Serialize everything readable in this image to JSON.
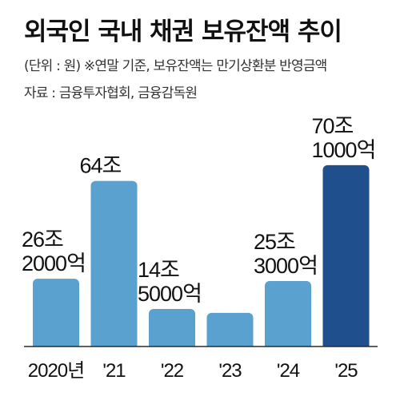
{
  "title": "외국인 국내 채권 보유잔액 추이",
  "unit_note": "(단위 : 원) ※연말 기준, 보유잔액는 만기상환분 반영금액",
  "source": "자료 : 금융투자협회, 금융감독원",
  "colors": {
    "bar": "#5aa1cf",
    "highlight": "#1f4f8c",
    "axis": "#2a2a2a"
  },
  "chart_data": {
    "type": "bar",
    "title": "외국인 국내 채권 보유잔액 추이",
    "categories": [
      "2020년",
      "'21",
      "'22",
      "'23",
      "'24",
      "'25"
    ],
    "values": [
      26.2,
      64,
      14.5,
      13,
      25.3,
      70.1
    ],
    "value_labels": [
      [
        "26조",
        "2000억"
      ],
      [
        "64조"
      ],
      [
        "14조",
        "5000억"
      ],
      [],
      [
        "25조",
        "3000억"
      ],
      [
        "70조",
        "1000억"
      ]
    ],
    "highlight_index": 5,
    "ylim": [
      0,
      80
    ],
    "grid": false,
    "legend": "none",
    "xlabel": "",
    "ylabel": ""
  }
}
